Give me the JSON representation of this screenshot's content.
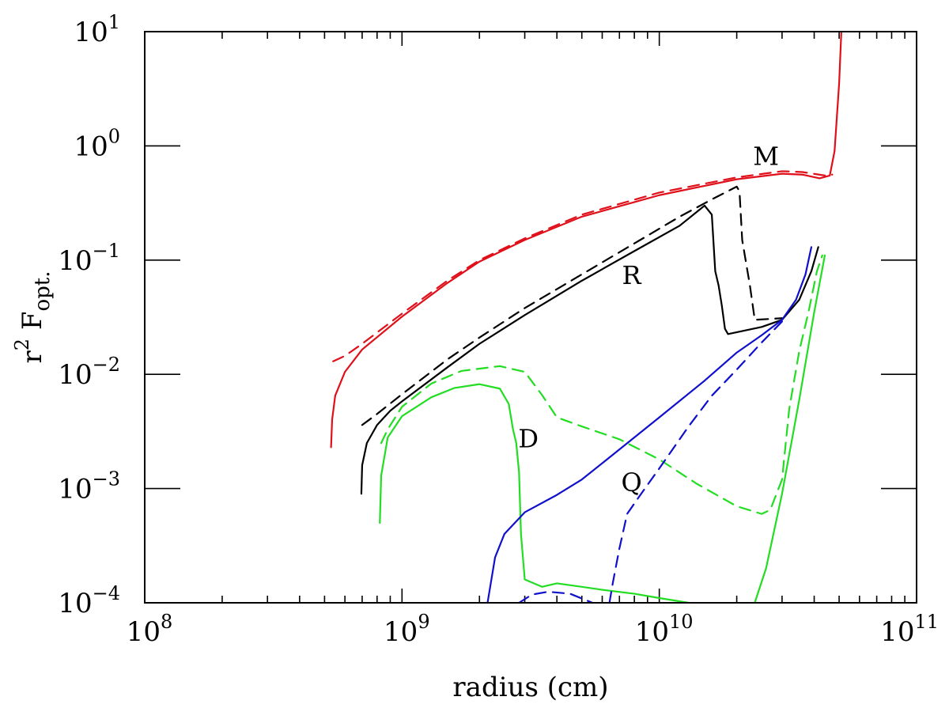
{
  "chart_data": {
    "type": "line",
    "title": "",
    "xlabel": "radius (cm)",
    "ylabel": {
      "base": "r",
      "power": "2",
      "main": " F",
      "sub": "opt."
    },
    "xscale": "log",
    "yscale": "log",
    "xlim": [
      100000000,
      100000000000
    ],
    "ylim": [
      0.0001,
      10
    ],
    "x_ticks": [
      {
        "value": 100000000,
        "base": "10",
        "exp": "8"
      },
      {
        "value": 1000000000,
        "base": "10",
        "exp": "9"
      },
      {
        "value": 10000000000,
        "base": "10",
        "exp": "10"
      },
      {
        "value": 100000000000,
        "base": "10",
        "exp": "11"
      }
    ],
    "y_ticks": [
      {
        "value": 0.0001,
        "base": "10",
        "exp": "−4"
      },
      {
        "value": 0.001,
        "base": "10",
        "exp": "−3"
      },
      {
        "value": 0.01,
        "base": "10",
        "exp": "−2"
      },
      {
        "value": 0.1,
        "base": "10",
        "exp": "−1"
      },
      {
        "value": 1,
        "base": "10",
        "exp": "0"
      },
      {
        "value": 10,
        "base": "10",
        "exp": "1"
      }
    ],
    "series": [
      {
        "name": "M solid",
        "color": "#e0101a",
        "style": "solid",
        "points": [
          [
            530000000.0,
            0.0023
          ],
          [
            535000000.0,
            0.004
          ],
          [
            550000000.0,
            0.0065
          ],
          [
            600000000.0,
            0.0105
          ],
          [
            700000000.0,
            0.0165
          ],
          [
            1000000000.0,
            0.032
          ],
          [
            1500000000.0,
            0.063
          ],
          [
            2000000000.0,
            0.097
          ],
          [
            3000000000.0,
            0.15
          ],
          [
            5000000000.0,
            0.24
          ],
          [
            10000000000.0,
            0.37
          ],
          [
            20000000000.0,
            0.51
          ],
          [
            30000000000.0,
            0.57
          ],
          [
            36000000000.0,
            0.56
          ],
          [
            42000000000.0,
            0.52
          ],
          [
            46000000000.0,
            0.55
          ],
          [
            48000000000.0,
            0.9
          ],
          [
            50000000000.0,
            3.5
          ],
          [
            51000000000.0,
            10
          ]
        ]
      },
      {
        "name": "M dashed",
        "color": "#e0101a",
        "style": "dashed",
        "points": [
          [
            540000000.0,
            0.013
          ],
          [
            600000000.0,
            0.0145
          ],
          [
            700000000.0,
            0.0185
          ],
          [
            1000000000.0,
            0.034
          ],
          [
            1500000000.0,
            0.066
          ],
          [
            2000000000.0,
            0.1
          ],
          [
            3000000000.0,
            0.155
          ],
          [
            5000000000.0,
            0.25
          ],
          [
            10000000000.0,
            0.39
          ],
          [
            20000000000.0,
            0.53
          ],
          [
            30000000000.0,
            0.6
          ],
          [
            36000000000.0,
            0.59
          ],
          [
            44000000000.0,
            0.55
          ],
          [
            47000000000.0,
            0.56
          ]
        ]
      },
      {
        "name": "R solid",
        "color": "#000000",
        "style": "solid",
        "points": [
          [
            695000000.0,
            0.0009
          ],
          [
            700000000.0,
            0.0016
          ],
          [
            730000000.0,
            0.0025
          ],
          [
            800000000.0,
            0.0036
          ],
          [
            900000000.0,
            0.0048
          ],
          [
            1000000000.0,
            0.0058
          ],
          [
            1500000000.0,
            0.0115
          ],
          [
            2000000000.0,
            0.0185
          ],
          [
            3000000000.0,
            0.033
          ],
          [
            5000000000.0,
            0.066
          ],
          [
            8000000000.0,
            0.12
          ],
          [
            12000000000.0,
            0.2
          ],
          [
            15000000000.0,
            0.3
          ],
          [
            16000000000.0,
            0.25
          ],
          [
            16500000000.0,
            0.08
          ],
          [
            17000000000.0,
            0.06
          ],
          [
            17500000000.0,
            0.04
          ],
          [
            18000000000.0,
            0.025
          ],
          [
            18500000000.0,
            0.0225
          ],
          [
            25000000000.0,
            0.026
          ],
          [
            30000000000.0,
            0.03
          ],
          [
            35000000000.0,
            0.045
          ],
          [
            39000000000.0,
            0.08
          ],
          [
            41500000000.0,
            0.13
          ]
        ]
      },
      {
        "name": "R dashed",
        "color": "#000000",
        "style": "dashed",
        "points": [
          [
            700000000.0,
            0.0036
          ],
          [
            800000000.0,
            0.0045
          ],
          [
            1000000000.0,
            0.0067
          ],
          [
            1500000000.0,
            0.0135
          ],
          [
            2000000000.0,
            0.021
          ],
          [
            3000000000.0,
            0.038
          ],
          [
            5000000000.0,
            0.075
          ],
          [
            8000000000.0,
            0.14
          ],
          [
            12000000000.0,
            0.24
          ],
          [
            16000000000.0,
            0.34
          ],
          [
            20000000000.0,
            0.44
          ],
          [
            20500000000.0,
            0.4
          ],
          [
            21000000000.0,
            0.15
          ],
          [
            22500000000.0,
            0.06
          ],
          [
            23500000000.0,
            0.03
          ],
          [
            30000000000.0,
            0.031
          ]
        ]
      },
      {
        "name": "D solid",
        "color": "#22dd22",
        "style": "solid",
        "points": [
          [
            820000000.0,
            0.0005
          ],
          [
            830000000.0,
            0.0013
          ],
          [
            880000000.0,
            0.0028
          ],
          [
            1000000000.0,
            0.0043
          ],
          [
            1300000000.0,
            0.0063
          ],
          [
            1600000000.0,
            0.0076
          ],
          [
            2000000000.0,
            0.0082
          ],
          [
            2400000000.0,
            0.0075
          ],
          [
            2600000000.0,
            0.0055
          ],
          [
            2700000000.0,
            0.0033
          ],
          [
            2780000000.0,
            0.0025
          ],
          [
            2850000000.0,
            0.0014
          ],
          [
            2900000000.0,
            0.0004
          ],
          [
            3000000000.0,
            0.00016
          ],
          [
            3500000000.0,
            0.000138
          ],
          [
            4000000000.0,
            0.000148
          ],
          [
            5000000000.0,
            0.000138
          ],
          [
            6000000000.0,
            0.00013
          ],
          [
            8000000000.0,
            0.00012
          ],
          [
            10000000000.0,
            0.00011
          ],
          [
            13000000000.0,
            0.0001
          ]
        ]
      },
      {
        "name": "D solid rise",
        "color": "#22dd22",
        "style": "solid",
        "points": [
          [
            23500000000.0,
            0.0001
          ],
          [
            26000000000.0,
            0.0002
          ],
          [
            30000000000.0,
            0.0009
          ],
          [
            35000000000.0,
            0.006
          ],
          [
            40000000000.0,
            0.035
          ],
          [
            44000000000.0,
            0.11
          ]
        ]
      },
      {
        "name": "D dashed",
        "color": "#22dd22",
        "style": "dashed",
        "points": [
          [
            830000000.0,
            0.0025
          ],
          [
            880000000.0,
            0.0033
          ],
          [
            1000000000.0,
            0.0052
          ],
          [
            1300000000.0,
            0.0083
          ],
          [
            1700000000.0,
            0.0107
          ],
          [
            2400000000.0,
            0.0118
          ],
          [
            3000000000.0,
            0.0105
          ],
          [
            3500000000.0,
            0.0066
          ],
          [
            4000000000.0,
            0.0042
          ],
          [
            5000000000.0,
            0.0035
          ],
          [
            7000000000.0,
            0.0027
          ],
          [
            10000000000.0,
            0.0018
          ],
          [
            14000000000.0,
            0.0011
          ],
          [
            20000000000.0,
            0.0007
          ],
          [
            25000000000.0,
            0.0006
          ],
          [
            27000000000.0,
            0.00065
          ],
          [
            30000000000.0,
            0.0012
          ],
          [
            32000000000.0,
            0.005
          ],
          [
            35000000000.0,
            0.016
          ],
          [
            38000000000.0,
            0.035
          ],
          [
            41000000000.0,
            0.08
          ],
          [
            43000000000.0,
            0.11
          ]
        ]
      },
      {
        "name": "Q solid",
        "color": "#1010cc",
        "style": "solid",
        "points": [
          [
            2150000000.0,
            0.0001
          ],
          [
            2300000000.0,
            0.00025
          ],
          [
            2500000000.0,
            0.0004
          ],
          [
            3000000000.0,
            0.00062
          ],
          [
            4000000000.0,
            0.00088
          ],
          [
            5000000000.0,
            0.0012
          ],
          [
            7000000000.0,
            0.0022
          ],
          [
            10000000000.0,
            0.0042
          ],
          [
            15000000000.0,
            0.0088
          ],
          [
            20000000000.0,
            0.0155
          ],
          [
            25000000000.0,
            0.022
          ],
          [
            30000000000.0,
            0.03
          ],
          [
            34000000000.0,
            0.045
          ],
          [
            37000000000.0,
            0.075
          ],
          [
            39000000000.0,
            0.13
          ]
        ]
      },
      {
        "name": "Q dashed",
        "color": "#1010cc",
        "style": "dashed",
        "points": [
          [
            6400000000.0,
            0.0001
          ],
          [
            6600000000.0,
            0.00015
          ],
          [
            7000000000.0,
            0.0003
          ],
          [
            7500000000.0,
            0.0006
          ],
          [
            8500000000.0,
            0.0009
          ],
          [
            10000000000.0,
            0.0015
          ],
          [
            13000000000.0,
            0.0035
          ],
          [
            16000000000.0,
            0.0065
          ],
          [
            20000000000.0,
            0.011
          ],
          [
            25000000000.0,
            0.019
          ],
          [
            30000000000.0,
            0.029
          ]
        ]
      },
      {
        "name": "Q dashed low",
        "color": "#1010cc",
        "style": "dashed",
        "points": [
          [
            2850000000.0,
            0.0001
          ],
          [
            3200000000.0,
            0.000118
          ],
          [
            3700000000.0,
            0.000125
          ],
          [
            4500000000.0,
            0.00012
          ],
          [
            5500000000.0,
            0.0001
          ]
        ]
      }
    ],
    "annotations": [
      {
        "text": "M",
        "x": 26000000000.0,
        "y": 0.68,
        "color": "#000000"
      },
      {
        "text": "R",
        "x": 7800000000.0,
        "y": 0.062,
        "color": "#000000"
      },
      {
        "text": "D",
        "x": 3100000000.0,
        "y": 0.0023,
        "color": "#000000"
      },
      {
        "text": "Q",
        "x": 7800000000.0,
        "y": 0.00095,
        "color": "#000000"
      }
    ]
  }
}
